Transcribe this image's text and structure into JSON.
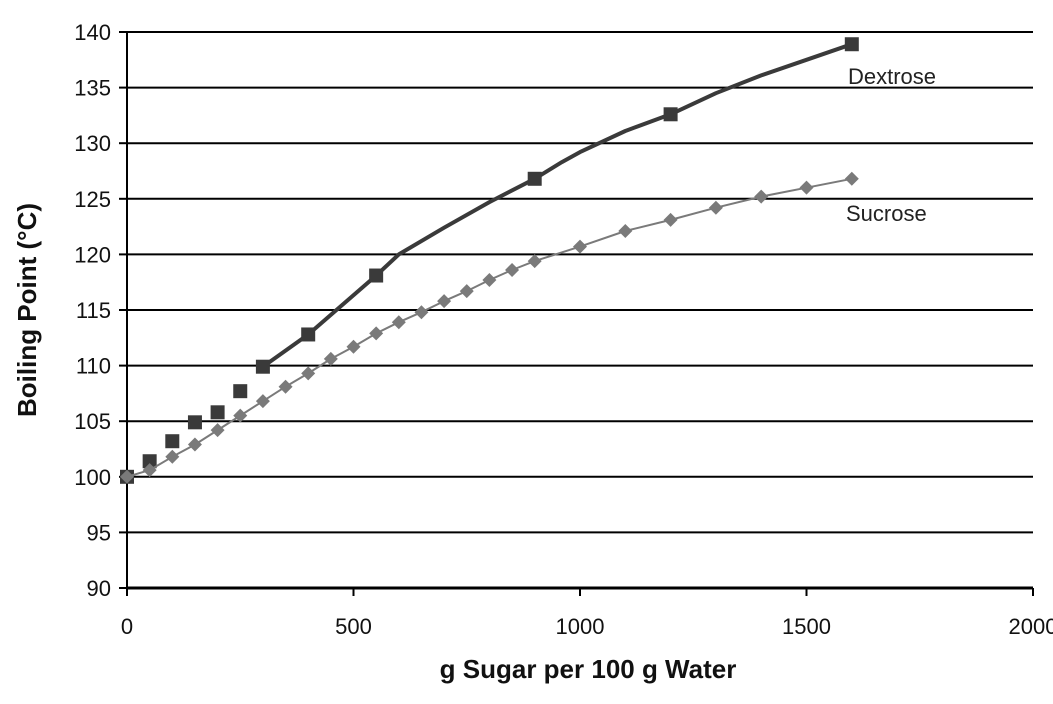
{
  "chart_data": {
    "type": "line",
    "title": "",
    "xlabel": "g Sugar per 100 g Water",
    "ylabel": "Boiling Point (°C)",
    "xlim": [
      0,
      2000
    ],
    "ylim": [
      90,
      140
    ],
    "xticks": [
      0,
      500,
      1000,
      1500,
      2000
    ],
    "xtick_labels": [
      "0",
      "500",
      "1000",
      "1500",
      "2000"
    ],
    "yticks": [
      90,
      95,
      100,
      105,
      110,
      115,
      120,
      125,
      130,
      135,
      140
    ],
    "ytick_labels": [
      "90",
      "95",
      "100",
      "105",
      "110",
      "115",
      "120",
      "125",
      "130",
      "135",
      "140"
    ],
    "grid": "horizontal",
    "legend": "inline labels",
    "series": [
      {
        "name": "Dextrose",
        "marker": "square",
        "color": "#3a3a3a",
        "x": [
          0,
          50,
          100,
          150,
          200,
          250,
          300,
          400,
          550,
          900,
          1200,
          1600
        ],
        "y": [
          100,
          101.4,
          103.2,
          104.9,
          105.8,
          107.7,
          109.9,
          112.8,
          118.1,
          126.8,
          132.6,
          138.9
        ],
        "line_x": [
          300,
          400,
          550,
          600,
          700,
          800,
          900,
          960,
          1000,
          1100,
          1200,
          1300,
          1400,
          1500,
          1600
        ],
        "line_y": [
          109.9,
          112.8,
          118.1,
          120,
          122.4,
          124.7,
          126.8,
          128.3,
          129.2,
          131.1,
          132.6,
          134.5,
          136.1,
          137.5,
          138.9
        ]
      },
      {
        "name": "Sucrose",
        "marker": "diamond",
        "color": "#7a7a7a",
        "x": [
          0,
          50,
          100,
          150,
          200,
          250,
          300,
          350,
          400,
          450,
          500,
          550,
          600,
          650,
          700,
          750,
          800,
          850,
          900,
          1000,
          1100,
          1200,
          1300,
          1400,
          1500,
          1600
        ],
        "y": [
          100,
          100.6,
          101.8,
          102.9,
          104.2,
          105.5,
          106.8,
          108.1,
          109.3,
          110.6,
          111.7,
          112.9,
          113.9,
          114.8,
          115.8,
          116.7,
          117.7,
          118.6,
          119.4,
          120.7,
          122.1,
          123.1,
          124.2,
          125.2,
          126.0,
          126.8
        ]
      }
    ],
    "colors": {
      "axis": "#000000",
      "grid": "#000000"
    }
  }
}
